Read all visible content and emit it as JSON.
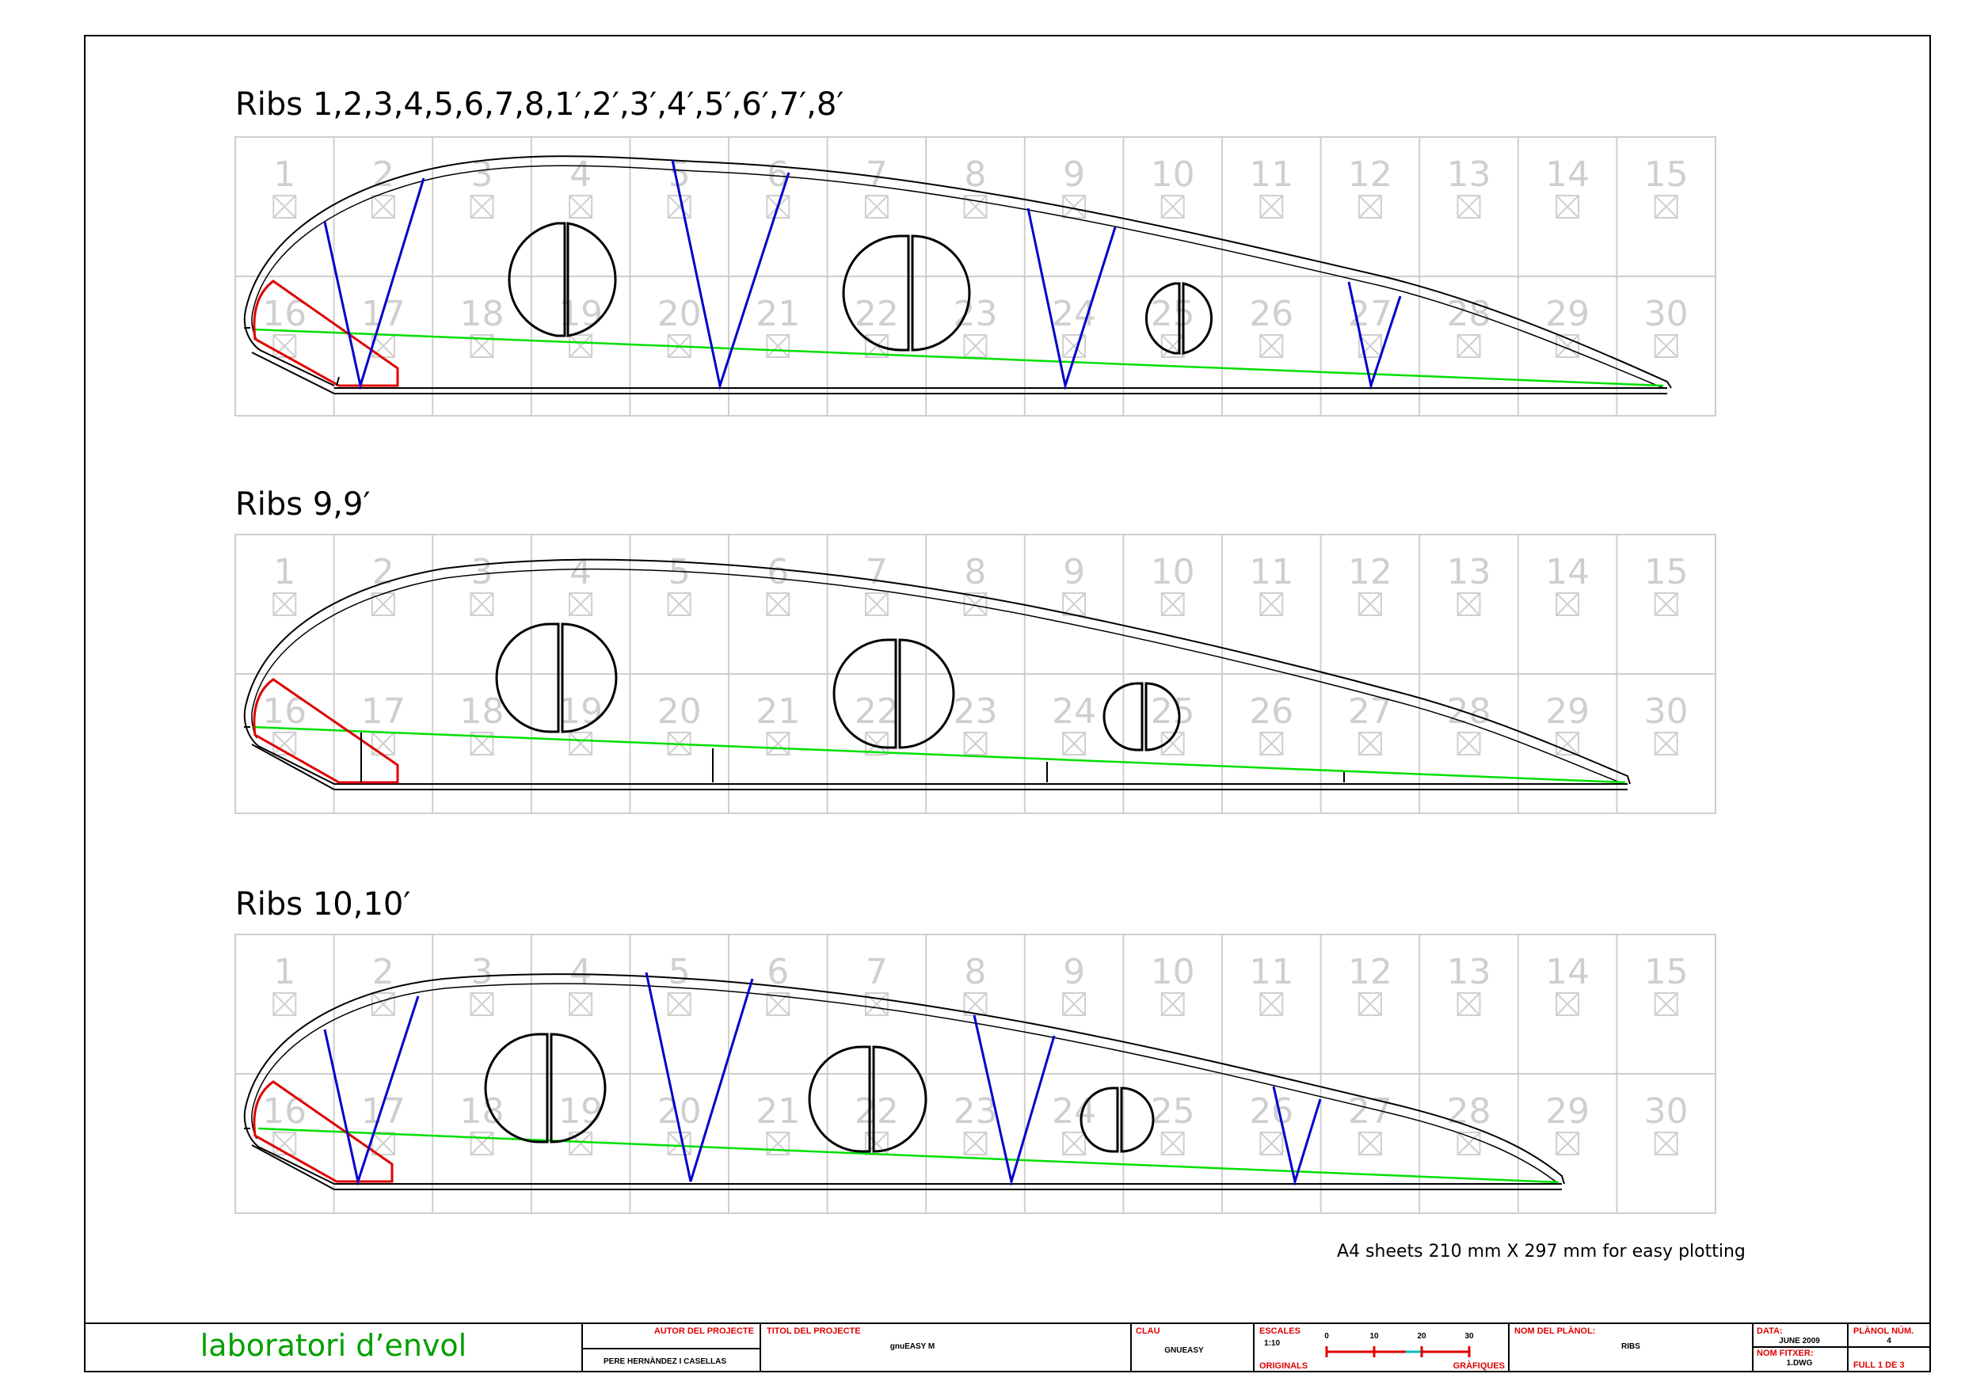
{
  "panels": [
    {
      "title": "Ribs 1,2,3,4,5,6,7,8,1′,2′,3′,4′,5′,6′,7′,8′",
      "sheet_numbers": [
        "1",
        "2",
        "3",
        "4",
        "5",
        "6",
        "7",
        "8",
        "9",
        "10",
        "11",
        "12",
        "13",
        "14",
        "15",
        "16",
        "17",
        "18",
        "19",
        "20",
        "21",
        "22",
        "23",
        "24",
        "25",
        "26",
        "27",
        "28",
        "29",
        "30"
      ]
    },
    {
      "title": "Ribs 9,9′",
      "sheet_numbers": [
        "1",
        "2",
        "3",
        "4",
        "5",
        "6",
        "7",
        "8",
        "9",
        "10",
        "11",
        "12",
        "13",
        "14",
        "15",
        "16",
        "17",
        "18",
        "19",
        "20",
        "21",
        "22",
        "23",
        "24",
        "25",
        "26",
        "27",
        "28",
        "29",
        "30"
      ]
    },
    {
      "title": "Ribs 10,10′",
      "sheet_numbers": [
        "1",
        "2",
        "3",
        "4",
        "5",
        "6",
        "7",
        "8",
        "9",
        "10",
        "11",
        "12",
        "13",
        "14",
        "15",
        "16",
        "17",
        "18",
        "19",
        "20",
        "21",
        "22",
        "23",
        "24",
        "25",
        "26",
        "27",
        "28",
        "29",
        "30"
      ]
    }
  ],
  "note": "A4 sheets 210 mm X 297 mm for easy plotting",
  "title_block": {
    "brand": "laboratori d’envol",
    "author_label": "AUTOR DEL PROJECTE",
    "author_value": "PERE HERNÀNDEZ I CASELLAS",
    "project_label": "TITOL DEL PROJECTE",
    "project_value": "gnuEASY M",
    "key_label": "CLAU",
    "key_value": "GNUEASY",
    "scales_label": "ESCALES",
    "scales_value": "1:10",
    "originals_label": "ORIGINALS",
    "graphics_label": "GRÀFIQUES",
    "scale_ticks": [
      "0",
      "10",
      "20",
      "30"
    ],
    "plan_name_label": "NOM DEL PLÀNOL:",
    "plan_name_value": "RIBS",
    "date_label": "DATA:",
    "date_value": "JUNE 2009",
    "file_label": "NOM FITXER:",
    "file_value": "1.DWG",
    "plan_num_label": "PLÀNOL NÚM.",
    "plan_num_value": "4",
    "sheet_of": "FULL 1 DE 3"
  },
  "colors": {
    "spar_diagonals": "#0000cc",
    "leading_edge_section": "#e00000",
    "reference_line": "#00e000",
    "sheet_grid": "#cfcfcf",
    "brand": "#00a000"
  }
}
